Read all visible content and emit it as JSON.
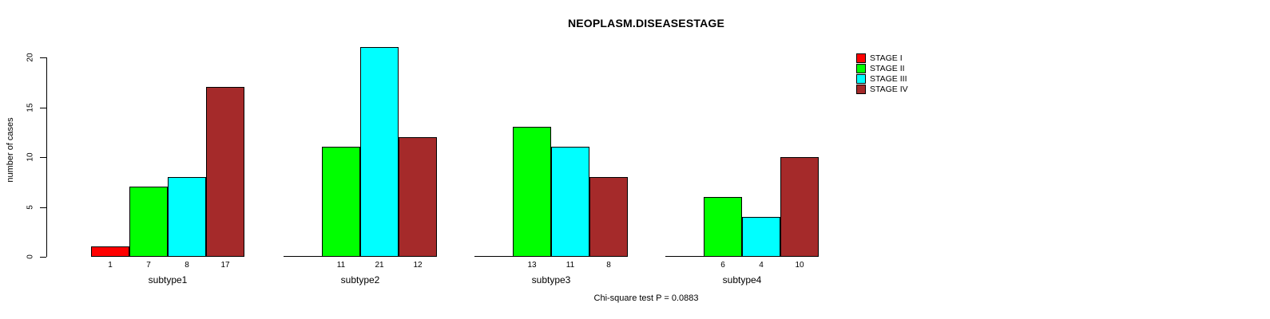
{
  "figure": {
    "title": "NEOPLASM.DISEASESTAGE",
    "footnote": "Chi-square test P = 0.0883"
  },
  "chart_data": {
    "type": "bar",
    "title": "NEOPLASM.DISEASESTAGE",
    "subtitle": "",
    "xlabel": "",
    "ylabel": "number of cases",
    "ylim": [
      0,
      20
    ],
    "yticks": [
      0,
      5,
      10,
      15,
      20
    ],
    "grid": false,
    "legend_position": "top-right",
    "bar_value_labels_shown": true,
    "categories": [
      "subtype1",
      "subtype2",
      "subtype3",
      "subtype4"
    ],
    "series": [
      {
        "name": "STAGE I",
        "color": "#FF0000",
        "values": [
          1,
          0,
          0,
          0
        ]
      },
      {
        "name": "STAGE II",
        "color": "#00FF00",
        "values": [
          7,
          11,
          13,
          6
        ]
      },
      {
        "name": "STAGE III",
        "color": "#00FFFF",
        "values": [
          8,
          21,
          11,
          4
        ]
      },
      {
        "name": "STAGE IV",
        "color": "#A52A2A",
        "values": [
          17,
          12,
          8,
          10
        ]
      }
    ],
    "footnote": "Chi-square test P = 0.0883"
  }
}
